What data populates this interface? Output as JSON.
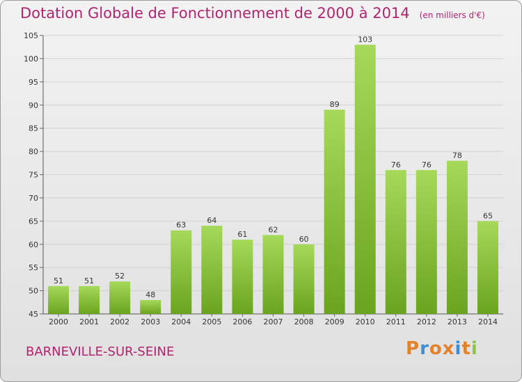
{
  "title": "Dotation Globale de Fonctionnement de 2000 à 2014",
  "unit_note": "(en milliers d'€)",
  "commune": "BARNEVILLE-SUR-SEINE",
  "logo": {
    "letters": [
      "P",
      "r",
      "o",
      "x",
      "i",
      "t",
      "i"
    ]
  },
  "colors": {
    "title": "#b0246e",
    "bar_light": "#a6d95a",
    "bar_dark": "#6aa41f",
    "logo_letters": [
      "#e2822a",
      "#3a8fd8",
      "#e2822a",
      "#e2822a",
      "#3a8fd8",
      "#e2822a",
      "#8cc63f"
    ]
  },
  "chart_data": {
    "type": "bar",
    "categories": [
      "2000",
      "2001",
      "2002",
      "2003",
      "2004",
      "2005",
      "2006",
      "2007",
      "2008",
      "2009",
      "2010",
      "2011",
      "2012",
      "2013",
      "2014"
    ],
    "values": [
      51,
      51,
      52,
      48,
      63,
      64,
      61,
      62,
      60,
      89,
      103,
      76,
      76,
      78,
      65
    ],
    "ylim": [
      45,
      105
    ],
    "yticks": [
      45,
      50,
      55,
      60,
      65,
      70,
      75,
      80,
      85,
      90,
      95,
      100,
      105
    ],
    "grid": true,
    "data_labels": true
  }
}
